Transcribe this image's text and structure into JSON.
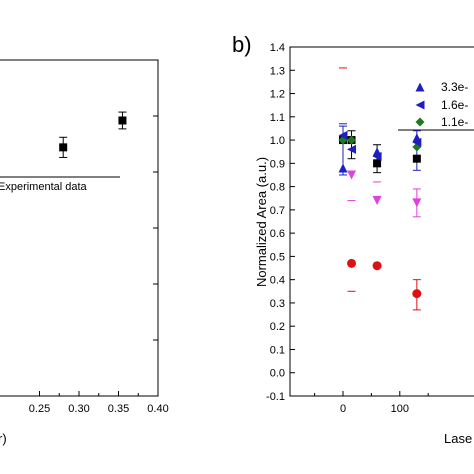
{
  "chart_data": [
    {
      "type": "scatter",
      "title": "",
      "xlabel": "r)",
      "ylabel": "",
      "xlim": [
        0.2,
        0.4
      ],
      "x_ticks": [
        "0.25",
        "0.30",
        "0.35",
        "0.40"
      ],
      "ylim": [
        0,
        1
      ],
      "grid": false,
      "legend": "Experimental data",
      "series": [
        {
          "name": "Experimental data",
          "marker": "square",
          "color": "#000000",
          "points": [
            {
              "x": 0.28,
              "y": 0.74,
              "err": 0.03
            },
            {
              "x": 0.355,
              "y": 0.82,
              "err": 0.025
            }
          ]
        }
      ]
    },
    {
      "type": "scatter",
      "panel_label": "b)",
      "title": "",
      "xlabel": "Lase",
      "ylabel": "Normalized Area (a.u.)",
      "xlim": [
        -50,
        200
      ],
      "x_ticks": [
        "0",
        "100"
      ],
      "ylim": [
        -0.1,
        1.4
      ],
      "y_ticks": [
        "-0.1",
        "0.0",
        "0.1",
        "0.2",
        "0.3",
        "0.4",
        "0.5",
        "0.6",
        "0.7",
        "0.8",
        "0.9",
        "1.0",
        "1.1",
        "1.2",
        "1.3",
        "1.4"
      ],
      "grid": false,
      "legend_entries": [
        "3.3e-",
        "1.6e-",
        "1.1e-"
      ],
      "series": [
        {
          "name": "3.3e-",
          "marker": "triangle-up",
          "color": "#1f1fbf",
          "points": [
            {
              "x": 0,
              "y": 0.88
            },
            {
              "x": 60,
              "y": 0.95
            },
            {
              "x": 130,
              "y": 1.01
            }
          ]
        },
        {
          "name": "1.6e-",
          "marker": "triangle-left",
          "color": "#1f1fbf",
          "points": [
            {
              "x": 0,
              "y": 1.02
            },
            {
              "x": 15,
              "y": 0.96
            },
            {
              "x": 60,
              "y": 0.93
            },
            {
              "x": 130,
              "y": 0.99
            }
          ]
        },
        {
          "name": "1.1e-",
          "marker": "diamond",
          "color": "#1e7a1e",
          "points": [
            {
              "x": 0,
              "y": 1.0
            },
            {
              "x": 15,
              "y": 1.0
            },
            {
              "x": 130,
              "y": 0.97
            }
          ]
        },
        {
          "marker": "square",
          "color": "#000000",
          "points": [
            {
              "x": 0,
              "y": 1.0
            },
            {
              "x": 15,
              "y": 1.0
            },
            {
              "x": 60,
              "y": 0.9
            },
            {
              "x": 130,
              "y": 0.92
            }
          ]
        },
        {
          "marker": "triangle-down",
          "color": "#e040e0",
          "points": [
            {
              "x": 15,
              "y": 0.85
            },
            {
              "x": 60,
              "y": 0.74
            },
            {
              "x": 130,
              "y": 0.73
            }
          ]
        },
        {
          "marker": "circle",
          "color": "#dd1111",
          "points": [
            {
              "x": 15,
              "y": 0.47
            },
            {
              "x": 60,
              "y": 0.46
            },
            {
              "x": 130,
              "y": 0.34
            }
          ]
        }
      ]
    }
  ]
}
